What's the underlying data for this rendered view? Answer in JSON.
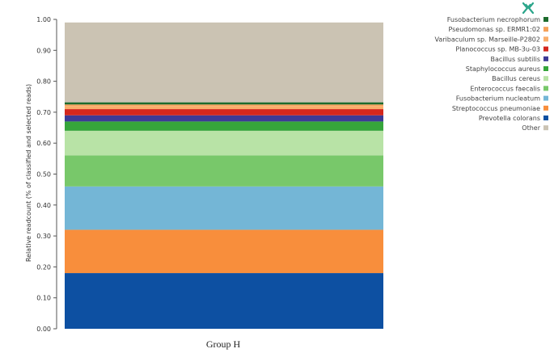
{
  "chart_data": {
    "type": "bar",
    "stacked": true,
    "categories": [
      "Group H"
    ],
    "ylabel": "Relative readcount (% of classified and selected reads)",
    "xlabel": "",
    "ylim": [
      0,
      1.0
    ],
    "yticks": [
      "0.00",
      "0.10",
      "0.20",
      "0.30",
      "0.40",
      "0.50",
      "0.60",
      "0.70",
      "0.80",
      "0.90",
      "1.00"
    ],
    "legend_position": "top-right",
    "series": [
      {
        "name": "Prevotella colorans",
        "color": "#0d50a2",
        "values": [
          0.18
        ]
      },
      {
        "name": "Streptococcus pneumoniae",
        "color": "#f88e3c",
        "values": [
          0.14
        ]
      },
      {
        "name": "Fusobacterium nucleatum",
        "color": "#74b6d6",
        "values": [
          0.14
        ]
      },
      {
        "name": "Enterococcus faecalis",
        "color": "#78c86a",
        "values": [
          0.1
        ]
      },
      {
        "name": "Bacillus cereus",
        "color": "#b8e3a6",
        "values": [
          0.08
        ]
      },
      {
        "name": "Staphylococcus aureus",
        "color": "#36a53b",
        "values": [
          0.03
        ]
      },
      {
        "name": "Bacillus subtilis",
        "color": "#3c3a96",
        "values": [
          0.02
        ]
      },
      {
        "name": "Planococcus sp. MB-3u-03",
        "color": "#d4271d",
        "values": [
          0.02
        ]
      },
      {
        "name": "Varibaculum sp. Marseille-P2802",
        "color": "#f9ae6b",
        "values": [
          0.01
        ]
      },
      {
        "name": "Pseudomonas sp. ERMR1:02",
        "color": "#f5a15a",
        "values": [
          0.005
        ]
      },
      {
        "name": "Fusobacterium necrophorum",
        "color": "#1d6b2d",
        "values": [
          0.007
        ]
      },
      {
        "name": "Other",
        "color": "#cbc3b3",
        "values": [
          0.258
        ]
      }
    ]
  },
  "logo": {
    "icon": "kraken-logo-icon",
    "color": "#2aa58a"
  }
}
